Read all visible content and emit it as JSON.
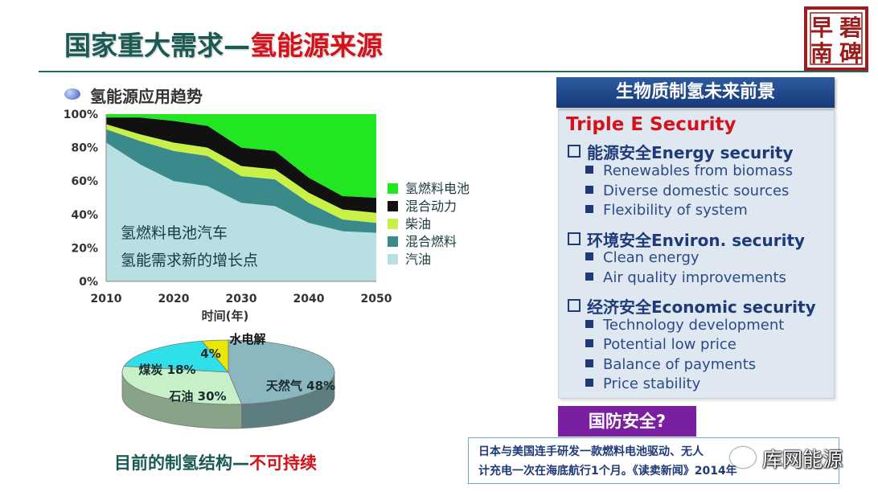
{
  "title": {
    "main": "国家重大需求—",
    "highlight": "氢能源来源"
  },
  "seal_text": [
    "碧",
    "早",
    "碑",
    "南"
  ],
  "left": {
    "trend_label": "氢能源应用趋势",
    "area_annotation": [
      "氢燃料电池汽车",
      "氢能需求新的增长点"
    ],
    "pie_caption": {
      "main": "目前的制氢结构—",
      "highlight": "不可持续"
    }
  },
  "panel": {
    "header": "生物质制氢未来前景",
    "triple": "Triple E Security",
    "sections": [
      {
        "heading": "能源安全Energy security",
        "items": [
          "Renewables from biomass",
          "Diverse domestic sources",
          "Flexibility of system"
        ]
      },
      {
        "heading": "环境安全Environ. security",
        "items": [
          "Clean energy",
          "Air quality improvements"
        ]
      },
      {
        "heading": "经济安全Economic security",
        "items": [
          "Technology development",
          "Potential low price",
          "Balance of payments",
          "Price stability"
        ]
      }
    ]
  },
  "defense_label": "国防安全?",
  "note_lines": [
    "日本与美国连手研发一款燃料电池驱动、无人",
    "计充电一次在海底航行1个月。《读卖新闻》2014年"
  ],
  "watermark": "库网能源",
  "colors": {
    "title": "#1a5a52",
    "accent": "#d4121b",
    "panel_head": "#1f3a78",
    "defense": "#7a1fa0"
  },
  "chart_data": [
    {
      "type": "area",
      "stacked": true,
      "xlabel": "时间(年)",
      "ylabel": "",
      "x": [
        2010,
        2015,
        2020,
        2025,
        2030,
        2035,
        2040,
        2045,
        2050
      ],
      "xticks": [
        2010,
        2020,
        2030,
        2040,
        2050
      ],
      "ylim": [
        0,
        100
      ],
      "yticks": [
        "0%",
        "20%",
        "40%",
        "60%",
        "80%",
        "100%"
      ],
      "legend_position": "right",
      "series": [
        {
          "name": "汽油",
          "color": "#b8e0e2",
          "values": [
            83,
            70,
            60,
            57,
            47,
            45,
            35,
            30,
            29
          ]
        },
        {
          "name": "混合燃料",
          "color": "#3a8a8c",
          "values": [
            8,
            14,
            18,
            18,
            16,
            16,
            12,
            7,
            6
          ]
        },
        {
          "name": "柴油",
          "color": "#c8f046",
          "values": [
            3,
            4,
            5,
            5,
            6,
            6,
            6,
            6,
            6
          ]
        },
        {
          "name": "混合动力",
          "color": "#111111",
          "values": [
            4,
            10,
            13,
            13,
            11,
            11,
            9,
            8,
            9
          ]
        },
        {
          "name": "氢燃料电池",
          "color": "#22e622",
          "values": [
            2,
            2,
            4,
            7,
            20,
            22,
            38,
            49,
            50
          ]
        }
      ]
    },
    {
      "type": "pie",
      "title": "水电解",
      "slices": [
        {
          "name": "天然气",
          "value": 48,
          "label": "天然气 48%",
          "color": "#8ab8be"
        },
        {
          "name": "石油",
          "value": 30,
          "label": "石油 30%",
          "color": "#c8f0c8"
        },
        {
          "name": "煤炭",
          "value": 18,
          "label": "煤炭 18%",
          "color": "#30e0e8"
        },
        {
          "name": "水电解",
          "value": 4,
          "label": "4%",
          "color": "#e8e800"
        }
      ]
    }
  ]
}
